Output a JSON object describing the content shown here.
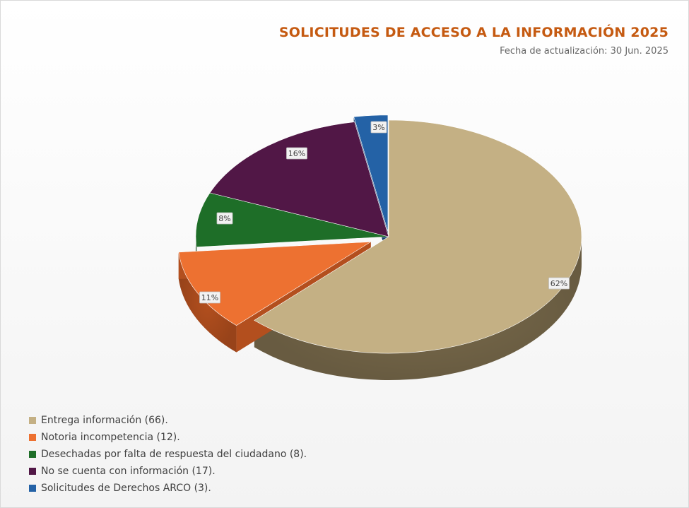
{
  "chart_data": {
    "type": "pie",
    "title": "SOLICITUDES DE ACCESO A LA INFORMACIÓN 2025",
    "subtitle": "Fecha de actualización: 30 Jun. 2025",
    "legend_position": "bottom-left",
    "slices": [
      {
        "label": "Entrega información (66).",
        "value": 66,
        "percent_label": "62%",
        "color": "#c4b084",
        "side_color": "#7a6b4c"
      },
      {
        "label": "Notoria incompetencia (12).",
        "value": 12,
        "percent_label": "11%",
        "color": "#ed7131",
        "side_color": "#b34f1e"
      },
      {
        "label": "Desechadas por falta de respuesta del ciudadano (8).",
        "value": 8,
        "percent_label": "8%",
        "color": "#1e6e28",
        "side_color": "#124618"
      },
      {
        "label": "No se cuenta con información (17).",
        "value": 17,
        "percent_label": "16%",
        "color": "#511746",
        "side_color": "#350e2e"
      },
      {
        "label": "Solicitudes de Derechos ARCO (3).",
        "value": 3,
        "percent_label": "3%",
        "color": "#2462a6",
        "side_color": "#173f6c"
      }
    ]
  }
}
